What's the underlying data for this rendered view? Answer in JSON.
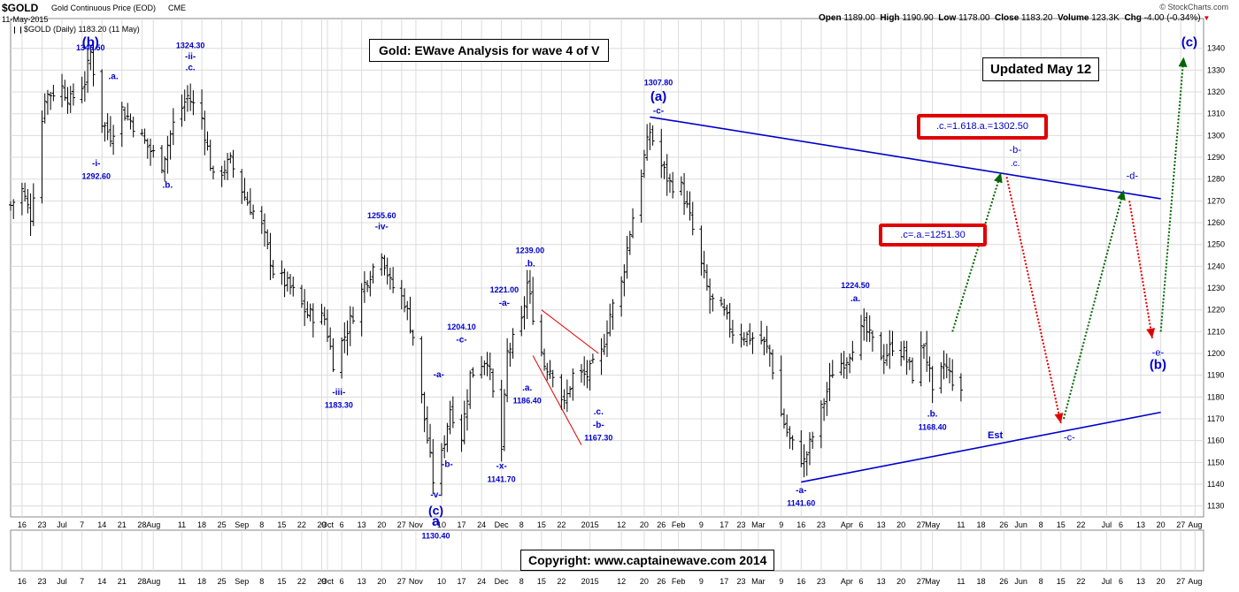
{
  "header": {
    "symbol": "$GOLD",
    "name": "Gold Continuous Price (EOD)",
    "exchange": "CME",
    "date": "11-May-2015",
    "brand": "© StockCharts.com",
    "legend": "$GOLD (Daily) 1183.20 (11 May)",
    "open_label": "Open",
    "open": "1189.00",
    "high_label": "High",
    "high": "1190.90",
    "low_label": "Low",
    "low": "1178.00",
    "close_label": "Close",
    "close": "1183.20",
    "volume_label": "Volume",
    "volume": "123.3K",
    "chg_label": "Chg",
    "chg": "-4.00 (-0.34%)"
  },
  "title_box": "Gold: EWave Analysis for wave 4 of V",
  "updated_box": "Updated May 12",
  "copyright": "Copyright:    www.captainewave.com 2014",
  "target_boxes": {
    "upper": ".c.=1.618.a.=1302.50",
    "lower": ".c=.a.=1251.30"
  },
  "colors": {
    "price_bar": "#000000",
    "wave_label": "#0000cc",
    "trendline": "#0000cc",
    "projection_up": "#006600",
    "projection_down": "#e00000",
    "target_box_border": "#e00000",
    "grid": "#dcdcdc"
  },
  "chart_data": {
    "type": "ohlc-bar",
    "frequency": "daily",
    "ylim": [
      1125,
      1348
    ],
    "y_ticks": [
      1130,
      1140,
      1150,
      1160,
      1170,
      1180,
      1190,
      1200,
      1210,
      1220,
      1230,
      1240,
      1250,
      1260,
      1270,
      1280,
      1290,
      1300,
      1310,
      1320,
      1330,
      1340
    ],
    "x_tick_labels": [
      {
        "d": "2014-06-16",
        "t": "16"
      },
      {
        "d": "2014-06-23",
        "t": "23"
      },
      {
        "d": "2014-06-30",
        "t": "Jul"
      },
      {
        "d": "2014-07-07",
        "t": "7"
      },
      {
        "d": "2014-07-14",
        "t": "14"
      },
      {
        "d": "2014-07-21",
        "t": "21"
      },
      {
        "d": "2014-07-28",
        "t": "28"
      },
      {
        "d": "2014-08-01",
        "t": "Aug"
      },
      {
        "d": "2014-08-11",
        "t": "11"
      },
      {
        "d": "2014-08-18",
        "t": "18"
      },
      {
        "d": "2014-08-25",
        "t": "25"
      },
      {
        "d": "2014-09-01",
        "t": "Sep"
      },
      {
        "d": "2014-09-08",
        "t": "8"
      },
      {
        "d": "2014-09-15",
        "t": "15"
      },
      {
        "d": "2014-09-22",
        "t": "22"
      },
      {
        "d": "2014-09-29",
        "t": "29"
      },
      {
        "d": "2014-10-01",
        "t": "Oct"
      },
      {
        "d": "2014-10-06",
        "t": "6"
      },
      {
        "d": "2014-10-13",
        "t": "13"
      },
      {
        "d": "2014-10-20",
        "t": "20"
      },
      {
        "d": "2014-10-27",
        "t": "27"
      },
      {
        "d": "2014-11-01",
        "t": "Nov"
      },
      {
        "d": "2014-11-10",
        "t": "10"
      },
      {
        "d": "2014-11-17",
        "t": "17"
      },
      {
        "d": "2014-11-24",
        "t": "24"
      },
      {
        "d": "2014-12-01",
        "t": "Dec"
      },
      {
        "d": "2014-12-08",
        "t": "8"
      },
      {
        "d": "2014-12-15",
        "t": "15"
      },
      {
        "d": "2014-12-22",
        "t": "22"
      },
      {
        "d": "2015-01-01",
        "t": "2015"
      },
      {
        "d": "2015-01-12",
        "t": "12"
      },
      {
        "d": "2015-01-20",
        "t": "20"
      },
      {
        "d": "2015-01-26",
        "t": "26"
      },
      {
        "d": "2015-02-01",
        "t": "Feb"
      },
      {
        "d": "2015-02-09",
        "t": "9"
      },
      {
        "d": "2015-02-17",
        "t": "17"
      },
      {
        "d": "2015-02-23",
        "t": "23"
      },
      {
        "d": "2015-03-01",
        "t": "Mar"
      },
      {
        "d": "2015-03-09",
        "t": "9"
      },
      {
        "d": "2015-03-16",
        "t": "16"
      },
      {
        "d": "2015-03-23",
        "t": "23"
      },
      {
        "d": "2015-04-01",
        "t": "Apr"
      },
      {
        "d": "2015-04-06",
        "t": "6"
      },
      {
        "d": "2015-04-13",
        "t": "13"
      },
      {
        "d": "2015-04-20",
        "t": "20"
      },
      {
        "d": "2015-04-27",
        "t": "27"
      },
      {
        "d": "2015-05-01",
        "t": "May"
      },
      {
        "d": "2015-05-11",
        "t": "11"
      },
      {
        "d": "2015-05-18",
        "t": "18"
      },
      {
        "d": "2015-05-26",
        "t": "26"
      },
      {
        "d": "2015-06-01",
        "t": "Jun"
      },
      {
        "d": "2015-06-08",
        "t": "8"
      },
      {
        "d": "2015-06-15",
        "t": "15"
      },
      {
        "d": "2015-06-22",
        "t": "22"
      },
      {
        "d": "2015-07-01",
        "t": "Jul"
      },
      {
        "d": "2015-07-06",
        "t": "6"
      },
      {
        "d": "2015-07-13",
        "t": "13"
      },
      {
        "d": "2015-07-20",
        "t": "20"
      },
      {
        "d": "2015-07-27",
        "t": "27"
      },
      {
        "d": "2015-08-01",
        "t": "Aug"
      }
    ],
    "price_anchors": [
      [
        "2014-06-12",
        1268
      ],
      [
        "2014-06-16",
        1275
      ],
      [
        "2014-06-19",
        1263
      ],
      [
        "2014-06-24",
        1318
      ],
      [
        "2014-06-30",
        1322
      ],
      [
        "2014-07-03",
        1316
      ],
      [
        "2014-07-08",
        1325
      ],
      [
        "2014-07-10",
        1338
      ],
      [
        "2014-07-14",
        1306
      ],
      [
        "2014-07-17",
        1300
      ],
      [
        "2014-07-21",
        1312
      ],
      [
        "2014-07-25",
        1305
      ],
      [
        "2014-07-31",
        1293
      ],
      [
        "2014-08-04",
        1287
      ],
      [
        "2014-08-08",
        1305
      ],
      [
        "2014-08-13",
        1318
      ],
      [
        "2014-08-18",
        1308
      ],
      [
        "2014-08-22",
        1280
      ],
      [
        "2014-08-28",
        1288
      ],
      [
        "2014-09-02",
        1272
      ],
      [
        "2014-09-08",
        1258
      ],
      [
        "2014-09-12",
        1238
      ],
      [
        "2014-09-18",
        1230
      ],
      [
        "2014-09-24",
        1218
      ],
      [
        "2014-09-30",
        1216
      ],
      [
        "2014-10-03",
        1196
      ],
      [
        "2014-10-07",
        1208
      ],
      [
        "2014-10-14",
        1232
      ],
      [
        "2014-10-20",
        1247
      ],
      [
        "2014-10-23",
        1232
      ],
      [
        "2014-10-28",
        1224
      ],
      [
        "2014-10-31",
        1208
      ],
      [
        "2014-11-04",
        1170
      ],
      [
        "2014-11-07",
        1142
      ],
      [
        "2014-11-10",
        1153
      ],
      [
        "2014-11-13",
        1175
      ],
      [
        "2014-11-17",
        1162
      ],
      [
        "2014-11-20",
        1190
      ],
      [
        "2014-11-24",
        1196
      ],
      [
        "2014-11-26",
        1198
      ],
      [
        "2014-12-01",
        1156
      ],
      [
        "2014-12-03",
        1200
      ],
      [
        "2014-12-08",
        1214
      ],
      [
        "2014-12-10",
        1232
      ],
      [
        "2014-12-12",
        1218
      ],
      [
        "2014-12-16",
        1195
      ],
      [
        "2014-12-19",
        1192
      ],
      [
        "2014-12-23",
        1176
      ],
      [
        "2014-12-26",
        1190
      ],
      [
        "2014-12-31",
        1190
      ],
      [
        "2015-01-05",
        1200
      ],
      [
        "2015-01-08",
        1218
      ],
      [
        "2015-01-12",
        1232
      ],
      [
        "2015-01-15",
        1256
      ],
      [
        "2015-01-20",
        1290
      ],
      [
        "2015-01-22",
        1302
      ],
      [
        "2015-01-26",
        1286
      ],
      [
        "2015-01-29",
        1278
      ],
      [
        "2015-02-02",
        1276
      ],
      [
        "2015-02-05",
        1262
      ],
      [
        "2015-02-09",
        1240
      ],
      [
        "2015-02-12",
        1225
      ],
      [
        "2015-02-17",
        1218
      ],
      [
        "2015-02-20",
        1210
      ],
      [
        "2015-02-25",
        1208
      ],
      [
        "2015-03-02",
        1206
      ],
      [
        "2015-03-05",
        1200
      ],
      [
        "2015-03-09",
        1172
      ],
      [
        "2015-03-12",
        1160
      ],
      [
        "2015-03-17",
        1150
      ],
      [
        "2015-03-20",
        1162
      ],
      [
        "2015-03-24",
        1178
      ],
      [
        "2015-03-27",
        1192
      ],
      [
        "2015-04-01",
        1198
      ],
      [
        "2015-04-03",
        1204
      ],
      [
        "2015-04-07",
        1212
      ],
      [
        "2015-04-10",
        1205
      ],
      [
        "2015-04-14",
        1198
      ],
      [
        "2015-04-17",
        1204
      ],
      [
        "2015-04-21",
        1200
      ],
      [
        "2015-04-24",
        1190
      ],
      [
        "2015-04-28",
        1205
      ],
      [
        "2015-04-30",
        1190
      ],
      [
        "2015-05-01",
        1180
      ],
      [
        "2015-05-05",
        1195
      ],
      [
        "2015-05-08",
        1188
      ],
      [
        "2015-05-11",
        1183
      ]
    ],
    "last_bar": {
      "date": "2015-05-11",
      "open": 1189.0,
      "high": 1190.9,
      "low": 1178.0,
      "close": 1183.2
    },
    "trendlines": [
      {
        "name": "upper",
        "from": [
          "2015-01-22",
          1308.5
        ],
        "to": [
          "2015-07-20",
          1271
        ]
      },
      {
        "name": "lower",
        "from": [
          "2015-03-16",
          1141
        ],
        "to": [
          "2015-07-20",
          1173
        ]
      }
    ],
    "projections": [
      {
        "kind": "up",
        "from": [
          "2015-05-08",
          1210
        ],
        "to": [
          "2015-05-25",
          1283
        ]
      },
      {
        "kind": "down",
        "from": [
          "2015-05-27",
          1281
        ],
        "to": [
          "2015-06-15",
          1168
        ]
      },
      {
        "kind": "up",
        "from": [
          "2015-06-16",
          1170
        ],
        "to": [
          "2015-07-07",
          1275
        ]
      },
      {
        "kind": "down",
        "from": [
          "2015-07-09",
          1270
        ],
        "to": [
          "2015-07-17",
          1207
        ]
      },
      {
        "kind": "up",
        "from": [
          "2015-07-20",
          1210
        ],
        "to": [
          "2015-07-28",
          1336
        ]
      }
    ],
    "wave_labels": [
      {
        "d": "2014-07-10",
        "p": 1339,
        "t": "1346.50",
        "fs": 9,
        "w": "bold"
      },
      {
        "d": "2014-07-10",
        "p": 1341,
        "t": "(b)",
        "fs": 15,
        "w": "bold"
      },
      {
        "d": "2014-07-18",
        "p": 1326,
        "t": ".a.",
        "fs": 10,
        "w": "bold"
      },
      {
        "d": "2014-08-14",
        "p": 1340,
        "t": "1324.30",
        "fs": 9,
        "w": "bold"
      },
      {
        "d": "2014-08-14",
        "p": 1335,
        "t": "-ii-",
        "fs": 10,
        "w": "bold"
      },
      {
        "d": "2014-08-14",
        "p": 1330,
        "t": ".c.",
        "fs": 10,
        "w": "bold"
      },
      {
        "d": "2014-07-12",
        "p": 1286,
        "t": "-i-",
        "fs": 10,
        "w": "bold"
      },
      {
        "d": "2014-07-12",
        "p": 1280,
        "t": "1292.60",
        "fs": 9,
        "w": "bold"
      },
      {
        "d": "2014-08-06",
        "p": 1276,
        "t": ".b.",
        "fs": 10,
        "w": "bold"
      },
      {
        "d": "2014-10-20",
        "p": 1262,
        "t": "1255.60",
        "fs": 9,
        "w": "bold"
      },
      {
        "d": "2014-10-20",
        "p": 1257,
        "t": "-iv-",
        "fs": 10,
        "w": "bold"
      },
      {
        "d": "2014-10-05",
        "p": 1181,
        "t": "-iii-",
        "fs": 10,
        "w": "bold"
      },
      {
        "d": "2014-10-05",
        "p": 1175,
        "t": "1183.30",
        "fs": 9,
        "w": "bold"
      },
      {
        "d": "2014-11-09",
        "p": 1189,
        "t": "-a-",
        "fs": 10,
        "w": "bold"
      },
      {
        "d": "2014-11-12",
        "p": 1148,
        "t": "-b-",
        "fs": 10,
        "w": "bold"
      },
      {
        "d": "2014-11-08",
        "p": 1134,
        "t": "-v-",
        "fs": 10,
        "w": "bold"
      },
      {
        "d": "2014-11-08",
        "p": 1126,
        "t": "(c)",
        "fs": 14,
        "w": "bold"
      },
      {
        "d": "2014-11-08",
        "p": 1121,
        "t": "a",
        "fs": 16,
        "w": "bold"
      },
      {
        "d": "2014-11-08",
        "p": 1115,
        "t": "1130.40",
        "fs": 9,
        "w": "bold"
      },
      {
        "d": "2014-11-17",
        "p": 1211,
        "t": "1204.10",
        "fs": 9,
        "w": "bold"
      },
      {
        "d": "2014-11-17",
        "p": 1205,
        "t": "-c-",
        "fs": 10,
        "w": "bold"
      },
      {
        "d": "2014-12-02",
        "p": 1228,
        "t": "1221.00",
        "fs": 9,
        "w": "bold"
      },
      {
        "d": "2014-12-02",
        "p": 1222,
        "t": "-a-",
        "fs": 10,
        "w": "bold"
      },
      {
        "d": "2014-12-11",
        "p": 1246,
        "t": "1239.00",
        "fs": 9,
        "w": "bold"
      },
      {
        "d": "2014-12-11",
        "p": 1240,
        "t": ".b.",
        "fs": 10,
        "w": "bold"
      },
      {
        "d": "2014-12-10",
        "p": 1183,
        "t": ".a.",
        "fs": 10,
        "w": "bold"
      },
      {
        "d": "2014-12-10",
        "p": 1177,
        "t": "1186.40",
        "fs": 9,
        "w": "bold"
      },
      {
        "d": "2014-12-01",
        "p": 1147,
        "t": "-x-",
        "fs": 10,
        "w": "bold"
      },
      {
        "d": "2014-12-01",
        "p": 1141,
        "t": "1141.70",
        "fs": 9,
        "w": "bold"
      },
      {
        "d": "2015-01-04",
        "p": 1172,
        "t": ".c.",
        "fs": 10,
        "w": "bold"
      },
      {
        "d": "2015-01-04",
        "p": 1166,
        "t": "-b-",
        "fs": 10,
        "w": "bold"
      },
      {
        "d": "2015-01-04",
        "p": 1160,
        "t": "1167.30",
        "fs": 9,
        "w": "bold"
      },
      {
        "d": "2015-01-25",
        "p": 1323,
        "t": "1307.80",
        "fs": 9,
        "w": "bold"
      },
      {
        "d": "2015-01-25",
        "p": 1316,
        "t": "(a)",
        "fs": 15,
        "w": "bold"
      },
      {
        "d": "2015-01-25",
        "p": 1310,
        "t": "-c-",
        "fs": 10,
        "w": "bold"
      },
      {
        "d": "2015-04-04",
        "p": 1230,
        "t": "1224.50",
        "fs": 9,
        "w": "bold"
      },
      {
        "d": "2015-04-04",
        "p": 1224,
        "t": ".a.",
        "fs": 10,
        "w": "bold"
      },
      {
        "d": "2015-05-01",
        "p": 1171,
        "t": ".b.",
        "fs": 10,
        "w": "bold"
      },
      {
        "d": "2015-05-01",
        "p": 1165,
        "t": "1168.40",
        "fs": 9,
        "w": "bold"
      },
      {
        "d": "2015-03-16",
        "p": 1136,
        "t": "-a-",
        "fs": 10,
        "w": "bold"
      },
      {
        "d": "2015-03-16",
        "p": 1130,
        "t": "1141.60",
        "fs": 9,
        "w": "bold"
      },
      {
        "d": "2015-05-30",
        "p": 1292,
        "t": "-b-",
        "fs": 11,
        "w": "normal"
      },
      {
        "d": "2015-05-30",
        "p": 1286,
        "t": ".c.",
        "fs": 10,
        "w": "normal"
      },
      {
        "d": "2015-07-10",
        "p": 1280,
        "t": "-d-",
        "fs": 11,
        "w": "normal"
      },
      {
        "d": "2015-06-18",
        "p": 1160,
        "t": "-c-",
        "fs": 11,
        "w": "normal"
      },
      {
        "d": "2015-05-23",
        "p": 1161,
        "t": "Est",
        "fs": 11,
        "w": "bold"
      },
      {
        "d": "2015-07-19",
        "p": 1199,
        "t": "-e-",
        "fs": 11,
        "w": "normal"
      },
      {
        "d": "2015-07-19",
        "p": 1193,
        "t": "(b)",
        "fs": 15,
        "w": "bold"
      },
      {
        "d": "2015-07-30",
        "p": 1341,
        "t": "(c)",
        "fs": 15,
        "w": "bold"
      }
    ]
  }
}
